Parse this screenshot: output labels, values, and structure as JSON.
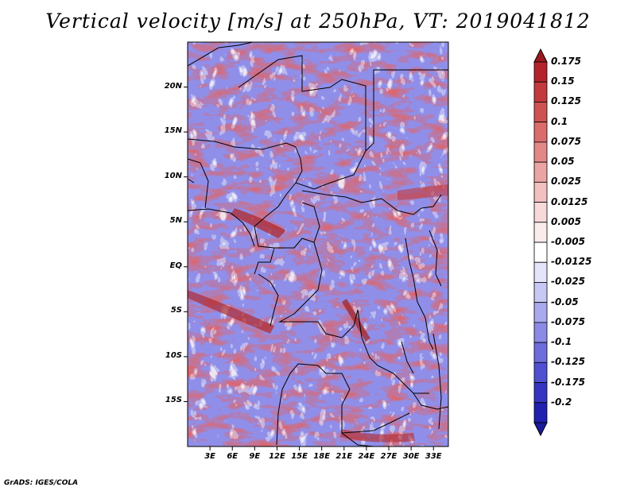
{
  "title": "Vertical velocity [m/s] at 250hPa, VT: 2019041812",
  "credit": "GrADS: IGES/COLA",
  "map": {
    "region": "Central Africa",
    "lon_range": [
      0,
      35
    ],
    "lat_range": [
      -20,
      25
    ],
    "lat_ticks": [
      {
        "value": 20,
        "label": "20N"
      },
      {
        "value": 15,
        "label": "15N"
      },
      {
        "value": 10,
        "label": "10N"
      },
      {
        "value": 5,
        "label": "5N"
      },
      {
        "value": 0,
        "label": "EQ"
      },
      {
        "value": -5,
        "label": "5S"
      },
      {
        "value": -10,
        "label": "10S"
      },
      {
        "value": -15,
        "label": "15S"
      }
    ],
    "lon_ticks": [
      {
        "value": 3,
        "label": "3E"
      },
      {
        "value": 6,
        "label": "6E"
      },
      {
        "value": 9,
        "label": "9E"
      },
      {
        "value": 12,
        "label": "12E"
      },
      {
        "value": 15,
        "label": "15E"
      },
      {
        "value": 18,
        "label": "18E"
      },
      {
        "value": 21,
        "label": "21E"
      },
      {
        "value": 24,
        "label": "24E"
      },
      {
        "value": 27,
        "label": "27E"
      },
      {
        "value": 30,
        "label": "30E"
      },
      {
        "value": 33,
        "label": "33E"
      }
    ]
  },
  "colorbar": {
    "levels": [
      {
        "label": "0.175",
        "color": "#b2232b"
      },
      {
        "label": "0.15",
        "color": "#c23a3d"
      },
      {
        "label": "0.125",
        "color": "#cf5252"
      },
      {
        "label": "0.1",
        "color": "#db6c6c"
      },
      {
        "label": "0.075",
        "color": "#e38888"
      },
      {
        "label": "0.05",
        "color": "#eba4a4"
      },
      {
        "label": "0.025",
        "color": "#f2c0c0"
      },
      {
        "label": "0.0125",
        "color": "#f7d9d9"
      },
      {
        "label": "0.005",
        "color": "#fbecec"
      },
      {
        "label": "-0.005",
        "color": "#ffffff"
      },
      {
        "label": "-0.0125",
        "color": "#e4e4fb"
      },
      {
        "label": "-0.025",
        "color": "#c8c8f4"
      },
      {
        "label": "-0.05",
        "color": "#a9a9ee"
      },
      {
        "label": "-0.075",
        "color": "#8b8be6"
      },
      {
        "label": "-0.1",
        "color": "#6d6ddd"
      },
      {
        "label": "-0.125",
        "color": "#5050d2"
      },
      {
        "label": "-0.175",
        "color": "#3535c2"
      },
      {
        "label": "-0.2",
        "color": "#1f1fb0"
      }
    ],
    "top_color": "#9b1a20",
    "bottom_color": "#1a1a9a"
  }
}
